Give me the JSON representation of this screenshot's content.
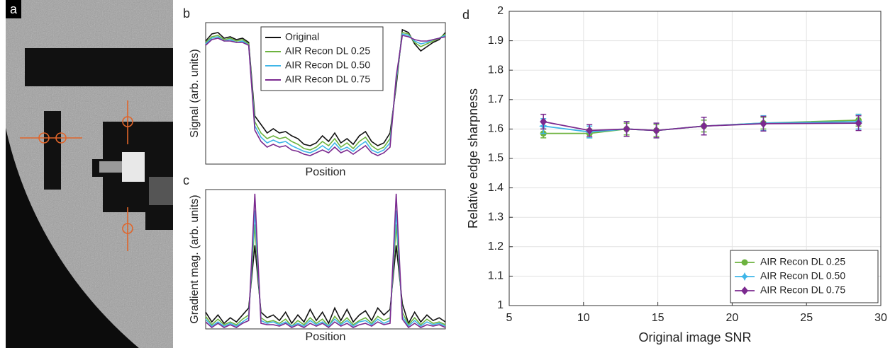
{
  "chart_data": [
    {
      "type": "image",
      "label": "a"
    },
    {
      "type": "line",
      "label": "b",
      "ylabel": "Signal (arb. units)",
      "xlabel": "Position",
      "legend": "upper left",
      "xlim": [
        0,
        39
      ],
      "ylim": [
        0,
        1
      ],
      "x": [
        0,
        1,
        2,
        3,
        4,
        5,
        6,
        7,
        8,
        9,
        10,
        11,
        12,
        13,
        14,
        15,
        16,
        17,
        18,
        19,
        20,
        21,
        22,
        23,
        24,
        25,
        26,
        27,
        28,
        29,
        30,
        31,
        32,
        33,
        34,
        35,
        36,
        37,
        38,
        39
      ],
      "series": [
        {
          "name": "Original",
          "color": "#111111",
          "values": [
            0.87,
            0.92,
            0.93,
            0.89,
            0.9,
            0.88,
            0.89,
            0.86,
            0.34,
            0.28,
            0.22,
            0.25,
            0.22,
            0.23,
            0.2,
            0.18,
            0.14,
            0.13,
            0.15,
            0.2,
            0.16,
            0.22,
            0.15,
            0.18,
            0.14,
            0.2,
            0.23,
            0.16,
            0.13,
            0.15,
            0.22,
            0.55,
            0.95,
            0.93,
            0.85,
            0.8,
            0.83,
            0.86,
            0.88,
            0.93
          ]
        },
        {
          "name": "AIR Recon DL 0.25",
          "color": "#6db33f",
          "values": [
            0.86,
            0.9,
            0.91,
            0.88,
            0.89,
            0.87,
            0.88,
            0.85,
            0.3,
            0.22,
            0.18,
            0.2,
            0.18,
            0.19,
            0.16,
            0.14,
            0.11,
            0.1,
            0.12,
            0.16,
            0.13,
            0.18,
            0.12,
            0.15,
            0.11,
            0.16,
            0.19,
            0.13,
            0.1,
            0.12,
            0.18,
            0.58,
            0.93,
            0.92,
            0.86,
            0.83,
            0.85,
            0.87,
            0.89,
            0.92
          ]
        },
        {
          "name": "AIR Recon DL 0.50",
          "color": "#3fb6e8",
          "values": [
            0.85,
            0.89,
            0.9,
            0.87,
            0.88,
            0.86,
            0.87,
            0.84,
            0.27,
            0.19,
            0.15,
            0.17,
            0.15,
            0.16,
            0.13,
            0.11,
            0.09,
            0.08,
            0.1,
            0.13,
            0.1,
            0.15,
            0.1,
            0.12,
            0.09,
            0.13,
            0.16,
            0.1,
            0.08,
            0.1,
            0.15,
            0.6,
            0.92,
            0.91,
            0.87,
            0.85,
            0.86,
            0.88,
            0.89,
            0.91
          ]
        },
        {
          "name": "AIR Recon DL 0.75",
          "color": "#7b2a8f",
          "values": [
            0.84,
            0.88,
            0.89,
            0.87,
            0.87,
            0.86,
            0.86,
            0.84,
            0.24,
            0.16,
            0.12,
            0.14,
            0.12,
            0.13,
            0.1,
            0.09,
            0.07,
            0.06,
            0.08,
            0.1,
            0.08,
            0.12,
            0.08,
            0.1,
            0.07,
            0.1,
            0.13,
            0.08,
            0.06,
            0.08,
            0.12,
            0.62,
            0.91,
            0.9,
            0.88,
            0.87,
            0.87,
            0.88,
            0.89,
            0.9
          ]
        }
      ]
    },
    {
      "type": "line",
      "label": "c",
      "ylabel": "Gradient mag. (arb. units)",
      "xlabel": "Position",
      "xlim": [
        0,
        39
      ],
      "ylim": [
        0,
        1
      ],
      "x": [
        0,
        1,
        2,
        3,
        4,
        5,
        6,
        7,
        8,
        9,
        10,
        11,
        12,
        13,
        14,
        15,
        16,
        17,
        18,
        19,
        20,
        21,
        22,
        23,
        24,
        25,
        26,
        27,
        28,
        29,
        30,
        31,
        32,
        33,
        34,
        35,
        36,
        37,
        38,
        39
      ],
      "series": [
        {
          "name": "Original",
          "color": "#111111",
          "values": [
            0.12,
            0.05,
            0.1,
            0.04,
            0.08,
            0.05,
            0.1,
            0.15,
            0.6,
            0.12,
            0.08,
            0.1,
            0.06,
            0.12,
            0.04,
            0.1,
            0.05,
            0.14,
            0.06,
            0.12,
            0.04,
            0.15,
            0.06,
            0.14,
            0.05,
            0.1,
            0.13,
            0.06,
            0.15,
            0.1,
            0.14,
            0.6,
            0.18,
            0.04,
            0.12,
            0.05,
            0.1,
            0.06,
            0.08,
            0.05
          ]
        },
        {
          "name": "AIR Recon DL 0.25",
          "color": "#6db33f",
          "values": [
            0.09,
            0.03,
            0.07,
            0.03,
            0.05,
            0.03,
            0.07,
            0.1,
            0.75,
            0.08,
            0.05,
            0.06,
            0.04,
            0.07,
            0.02,
            0.06,
            0.03,
            0.08,
            0.04,
            0.07,
            0.02,
            0.09,
            0.04,
            0.08,
            0.03,
            0.06,
            0.08,
            0.04,
            0.09,
            0.06,
            0.08,
            0.75,
            0.12,
            0.03,
            0.08,
            0.03,
            0.07,
            0.04,
            0.05,
            0.03
          ]
        },
        {
          "name": "AIR Recon DL 0.50",
          "color": "#3fb6e8",
          "values": [
            0.07,
            0.02,
            0.05,
            0.02,
            0.04,
            0.02,
            0.05,
            0.08,
            0.85,
            0.06,
            0.04,
            0.05,
            0.03,
            0.05,
            0.02,
            0.04,
            0.02,
            0.06,
            0.03,
            0.05,
            0.02,
            0.07,
            0.03,
            0.06,
            0.02,
            0.05,
            0.06,
            0.03,
            0.07,
            0.04,
            0.06,
            0.85,
            0.09,
            0.02,
            0.06,
            0.02,
            0.05,
            0.03,
            0.04,
            0.02
          ]
        },
        {
          "name": "AIR Recon DL 0.75",
          "color": "#7b2a8f",
          "values": [
            0.05,
            0.01,
            0.04,
            0.01,
            0.03,
            0.01,
            0.04,
            0.06,
            0.97,
            0.04,
            0.03,
            0.03,
            0.02,
            0.04,
            0.01,
            0.03,
            0.01,
            0.04,
            0.02,
            0.04,
            0.01,
            0.05,
            0.02,
            0.04,
            0.01,
            0.03,
            0.04,
            0.02,
            0.05,
            0.03,
            0.04,
            0.97,
            0.07,
            0.01,
            0.04,
            0.01,
            0.03,
            0.02,
            0.03,
            0.01
          ]
        }
      ]
    },
    {
      "type": "errorbar",
      "label": "d",
      "ylabel": "Relative edge sharpness",
      "xlabel": "Original image SNR",
      "legend": "lower right",
      "grid": true,
      "xlim": [
        5,
        30
      ],
      "xticks": [
        5,
        10,
        15,
        20,
        25,
        30
      ],
      "ylim": [
        1,
        2
      ],
      "yticks": [
        1,
        1.1,
        1.2,
        1.3,
        1.4,
        1.5,
        1.6,
        1.7,
        1.8,
        1.9,
        2
      ],
      "x": [
        7.3,
        10.4,
        12.9,
        14.9,
        18.1,
        22.1,
        28.5
      ],
      "series": [
        {
          "name": "AIR Recon DL 0.25",
          "color": "#6db33f",
          "marker": "circle",
          "values": [
            1.585,
            1.585,
            1.6,
            1.595,
            1.61,
            1.62,
            1.63
          ],
          "errors": [
            0.015,
            0.015,
            0.02,
            0.02,
            0.02,
            0.02,
            0.02
          ]
        },
        {
          "name": "AIR Recon DL 0.50",
          "color": "#3fb6e8",
          "marker": "star",
          "values": [
            1.61,
            1.59,
            1.6,
            1.595,
            1.61,
            1.62,
            1.625
          ],
          "errors": [
            0.025,
            0.02,
            0.025,
            0.025,
            0.03,
            0.025,
            0.025
          ]
        },
        {
          "name": "AIR Recon DL 0.75",
          "color": "#7b2a8f",
          "marker": "diamond",
          "values": [
            1.625,
            1.595,
            1.6,
            1.595,
            1.61,
            1.618,
            1.62
          ],
          "errors": [
            0.025,
            0.02,
            0.025,
            0.025,
            0.03,
            0.025,
            0.025
          ]
        }
      ]
    }
  ]
}
